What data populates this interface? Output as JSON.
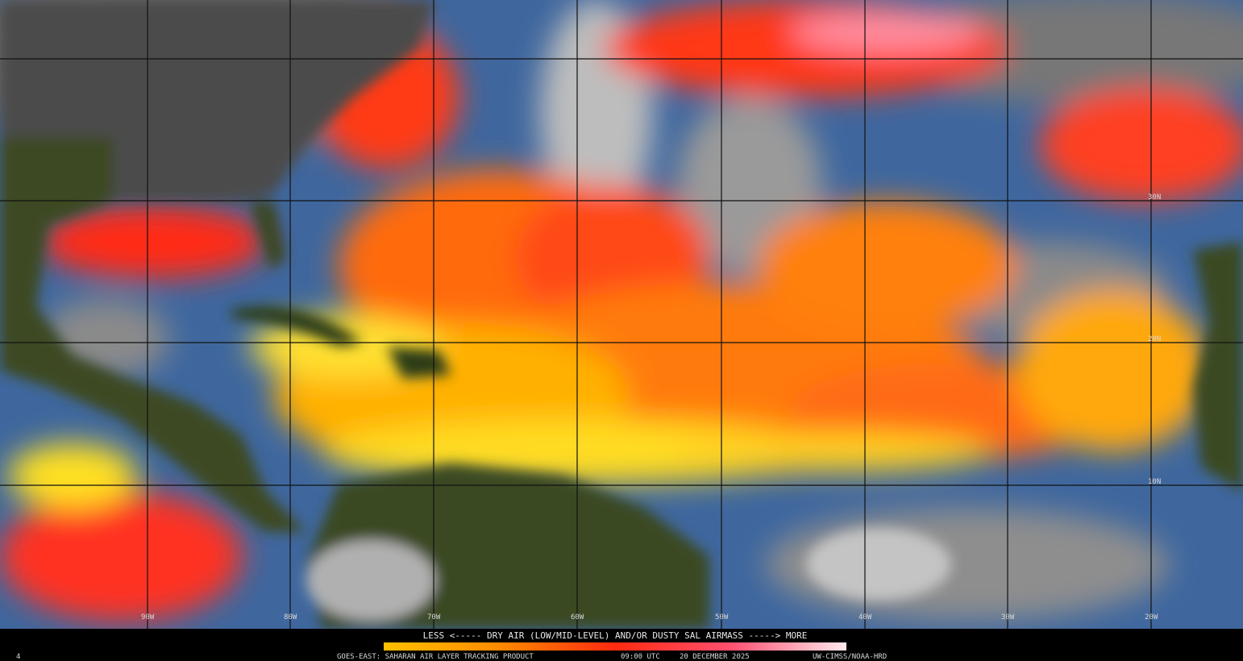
{
  "colorbar_caption": "LESS <----- DRY AIR (LOW/MID-LEVEL) AND/OR DUSTY SAL AIRMASS -----> MORE",
  "footer": {
    "product": "GOES-EAST: SAHARAN AIR LAYER TRACKING PRODUCT",
    "time": "09:00 UTC",
    "date": "20 DECEMBER 2025",
    "credit": "UW-CIMSS/NOAA-HRD"
  },
  "corner_label": "4",
  "latitude_labels": [
    "30N",
    "20N",
    "10N"
  ],
  "longitude_labels": [
    "90W",
    "80W",
    "70W",
    "60W",
    "50W",
    "40W",
    "30W",
    "20W"
  ]
}
